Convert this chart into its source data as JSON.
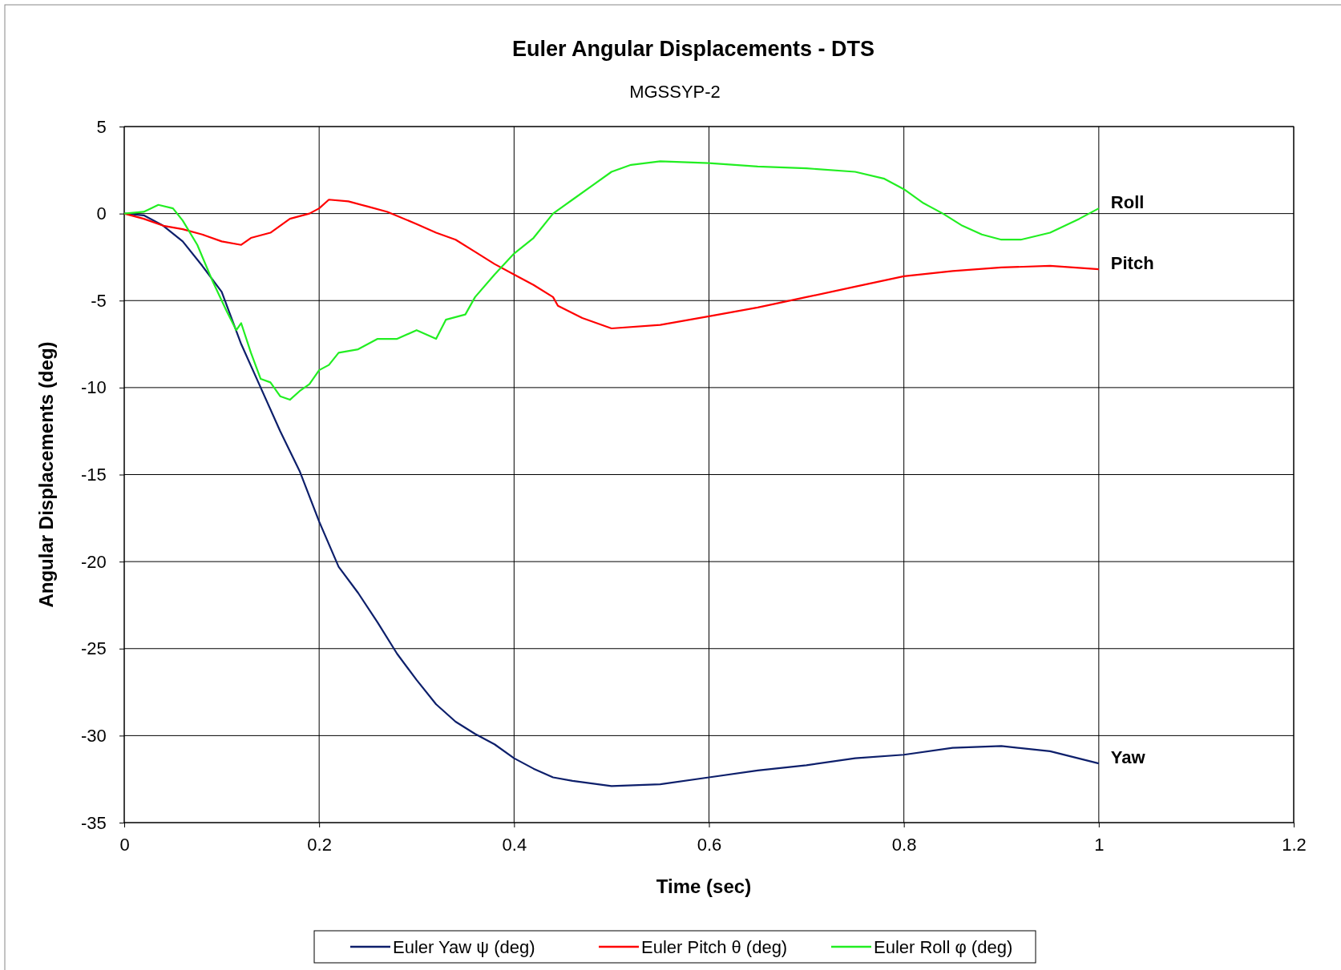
{
  "chart_data": {
    "type": "line",
    "title": "Euler Angular Displacements - DTS",
    "subtitle": "MGSSYP-2",
    "xlabel": "Time (sec)",
    "ylabel": "Angular Displacements (deg)",
    "xlim": [
      0,
      1.2
    ],
    "xticks": [
      0,
      0.2,
      0.4,
      0.6,
      0.8,
      1,
      1.2
    ],
    "ylim": [
      -35,
      5
    ],
    "yticks": [
      -35,
      -30,
      -25,
      -20,
      -15,
      -10,
      -5,
      0,
      5
    ],
    "grid": true,
    "legend": "bottom",
    "marker": "none",
    "line_style": "solid",
    "series": [
      {
        "name": "Euler Yaw ψ (deg)",
        "color": "#0d1f6b",
        "x": [
          0,
          0.02,
          0.04,
          0.06,
          0.08,
          0.1,
          0.12,
          0.14,
          0.16,
          0.18,
          0.2,
          0.22,
          0.24,
          0.26,
          0.28,
          0.3,
          0.32,
          0.34,
          0.36,
          0.38,
          0.4,
          0.42,
          0.44,
          0.46,
          0.5,
          0.55,
          0.6,
          0.65,
          0.7,
          0.75,
          0.8,
          0.85,
          0.9,
          0.95,
          1
        ],
        "values": [
          0,
          -0.1,
          -0.7,
          -1.6,
          -3,
          -4.5,
          -7.5,
          -10,
          -12.5,
          -14.8,
          -17.7,
          -20.3,
          -21.8,
          -23.5,
          -25.3,
          -26.8,
          -28.2,
          -29.2,
          -29.9,
          -30.5,
          -31.3,
          -31.9,
          -32.4,
          -32.6,
          -32.9,
          -32.8,
          -32.4,
          -32,
          -31.7,
          -31.3,
          -31.1,
          -30.7,
          -30.6,
          -30.9,
          -31.6
        ]
      },
      {
        "name": "Euler Pitch θ (deg)",
        "color": "#ff0000",
        "x": [
          0,
          0.02,
          0.04,
          0.06,
          0.08,
          0.1,
          0.12,
          0.13,
          0.15,
          0.17,
          0.19,
          0.2,
          0.21,
          0.23,
          0.25,
          0.27,
          0.3,
          0.32,
          0.34,
          0.36,
          0.38,
          0.4,
          0.42,
          0.44,
          0.445,
          0.47,
          0.5,
          0.55,
          0.6,
          0.65,
          0.7,
          0.75,
          0.8,
          0.85,
          0.9,
          0.95,
          1
        ],
        "values": [
          0,
          -0.3,
          -0.7,
          -0.9,
          -1.2,
          -1.6,
          -1.8,
          -1.4,
          -1.1,
          -0.3,
          0,
          0.3,
          0.8,
          0.7,
          0.4,
          0.1,
          -0.6,
          -1.1,
          -1.5,
          -2.2,
          -2.9,
          -3.5,
          -4.1,
          -4.8,
          -5.3,
          -6,
          -6.6,
          -6.4,
          -5.9,
          -5.4,
          -4.8,
          -4.2,
          -3.6,
          -3.3,
          -3.1,
          -3,
          -3.2
        ]
      },
      {
        "name": "Euler Roll φ (deg)",
        "color": "#22ee22",
        "x": [
          0,
          0.02,
          0.035,
          0.05,
          0.06,
          0.075,
          0.09,
          0.105,
          0.115,
          0.12,
          0.13,
          0.14,
          0.15,
          0.16,
          0.17,
          0.18,
          0.19,
          0.2,
          0.21,
          0.22,
          0.24,
          0.26,
          0.28,
          0.3,
          0.32,
          0.33,
          0.35,
          0.36,
          0.38,
          0.4,
          0.42,
          0.44,
          0.46,
          0.48,
          0.5,
          0.52,
          0.55,
          0.6,
          0.65,
          0.7,
          0.75,
          0.78,
          0.8,
          0.82,
          0.84,
          0.86,
          0.88,
          0.9,
          0.92,
          0.95,
          0.98,
          1
        ],
        "values": [
          0,
          0.1,
          0.5,
          0.3,
          -0.4,
          -1.8,
          -3.8,
          -5.6,
          -6.7,
          -6.3,
          -8,
          -9.5,
          -9.7,
          -10.5,
          -10.7,
          -10.2,
          -9.8,
          -9,
          -8.7,
          -8,
          -7.8,
          -7.2,
          -7.2,
          -6.7,
          -7.2,
          -6.1,
          -5.8,
          -4.8,
          -3.5,
          -2.3,
          -1.4,
          0,
          0.8,
          1.6,
          2.4,
          2.8,
          3,
          2.9,
          2.7,
          2.6,
          2.4,
          2,
          1.4,
          0.6,
          0,
          -0.7,
          -1.2,
          -1.5,
          -1.5,
          -1.1,
          -0.3,
          0.3
        ]
      }
    ],
    "annotations": [
      "Roll",
      "Pitch",
      "Yaw"
    ]
  }
}
